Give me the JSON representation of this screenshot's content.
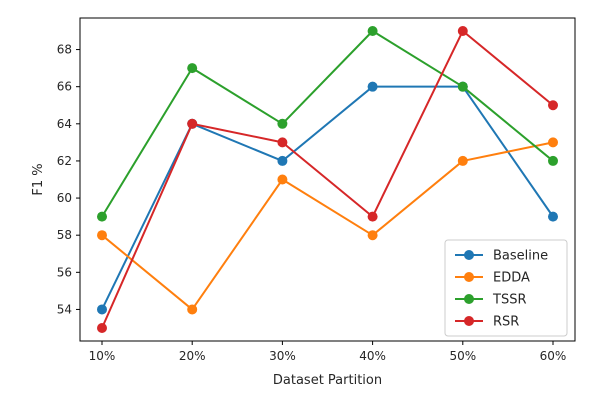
{
  "chart_data": {
    "type": "line",
    "categories": [
      "10%",
      "20%",
      "30%",
      "40%",
      "50%",
      "60%"
    ],
    "xlabel": "Dataset Partition",
    "ylabel": "F1 %",
    "ylim": [
      52.3,
      69.7
    ],
    "yticks": [
      54,
      56,
      58,
      60,
      62,
      64,
      66,
      68
    ],
    "grid": false,
    "legend_position": "bottom-right",
    "series": [
      {
        "name": "Baseline",
        "color": "#1f77b4",
        "values": [
          54,
          64,
          62,
          66,
          66,
          59
        ]
      },
      {
        "name": "EDDA",
        "color": "#ff7f0e",
        "values": [
          58,
          54,
          61,
          58,
          62,
          63
        ]
      },
      {
        "name": "TSSR",
        "color": "#2ca02c",
        "values": [
          59,
          67,
          64,
          69,
          66,
          62
        ]
      },
      {
        "name": "RSR",
        "color": "#d62728",
        "values": [
          53,
          64,
          63,
          59,
          69,
          65
        ]
      }
    ]
  }
}
